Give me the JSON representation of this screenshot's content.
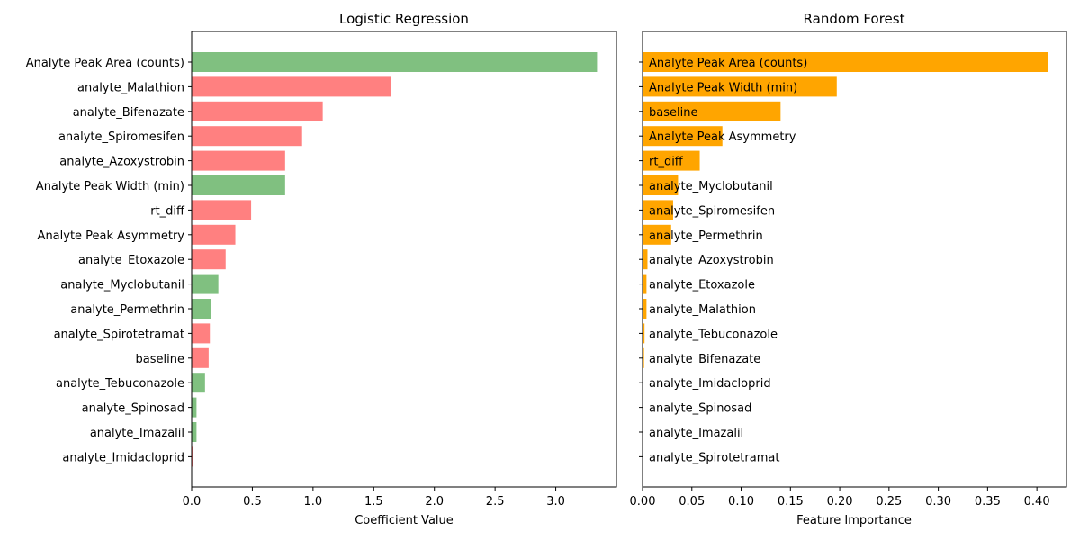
{
  "chart_data": [
    {
      "type": "bar",
      "orientation": "horizontal",
      "title": "Logistic Regression",
      "xlabel": "Coefficient Value",
      "ylabel": "",
      "xlim": [
        0,
        3.5
      ],
      "xticks": [
        "0.0",
        "0.5",
        "1.0",
        "1.5",
        "2.0",
        "2.5",
        "3.0"
      ],
      "label_position": "left",
      "colors": {
        "positive": "#80c080",
        "negative": "#ff8080"
      },
      "categories": [
        "Analyte Peak Area (counts)",
        "analyte_Malathion",
        "analyte_Bifenazate",
        "analyte_Spiromesifen",
        "analyte_Azoxystrobin",
        "Analyte Peak Width (min)",
        "rt_diff",
        "Analyte Peak Asymmetry",
        "analyte_Etoxazole",
        "analyte_Myclobutanil",
        "analyte_Permethrin",
        "analyte_Spirotetramat",
        "baseline",
        "analyte_Tebuconazole",
        "analyte_Spinosad",
        "analyte_Imazalil",
        "analyte_Imidacloprid"
      ],
      "values": [
        3.34,
        1.64,
        1.08,
        0.91,
        0.77,
        0.77,
        0.49,
        0.36,
        0.28,
        0.22,
        0.16,
        0.15,
        0.14,
        0.11,
        0.04,
        0.04,
        0.01
      ],
      "signs": [
        "positive",
        "negative",
        "negative",
        "negative",
        "negative",
        "positive",
        "negative",
        "negative",
        "negative",
        "positive",
        "positive",
        "negative",
        "negative",
        "positive",
        "positive",
        "positive",
        "negative"
      ]
    },
    {
      "type": "bar",
      "orientation": "horizontal",
      "title": "Random Forest",
      "xlabel": "Feature Importance",
      "ylabel": "",
      "xlim": [
        0,
        0.43
      ],
      "xticks": [
        "0.00",
        "0.05",
        "0.10",
        "0.15",
        "0.20",
        "0.25",
        "0.30",
        "0.35",
        "0.40"
      ],
      "label_position": "inside",
      "colors": {
        "bar": "#ffa500"
      },
      "categories": [
        "Analyte Peak Area (counts)",
        "Analyte Peak Width (min)",
        "baseline",
        "Analyte Peak Asymmetry",
        "rt_diff",
        "analyte_Myclobutanil",
        "analyte_Spiromesifen",
        "analyte_Permethrin",
        "analyte_Azoxystrobin",
        "analyte_Etoxazole",
        "analyte_Malathion",
        "analyte_Tebuconazole",
        "analyte_Bifenazate",
        "analyte_Imidacloprid",
        "analyte_Spinosad",
        "analyte_Imazalil",
        "analyte_Spirotetramat"
      ],
      "values": [
        0.411,
        0.197,
        0.14,
        0.081,
        0.058,
        0.036,
        0.031,
        0.029,
        0.005,
        0.004,
        0.004,
        0.002,
        0.0015,
        0.0004,
        0.0003,
        0.0002,
        0.0001
      ]
    }
  ]
}
